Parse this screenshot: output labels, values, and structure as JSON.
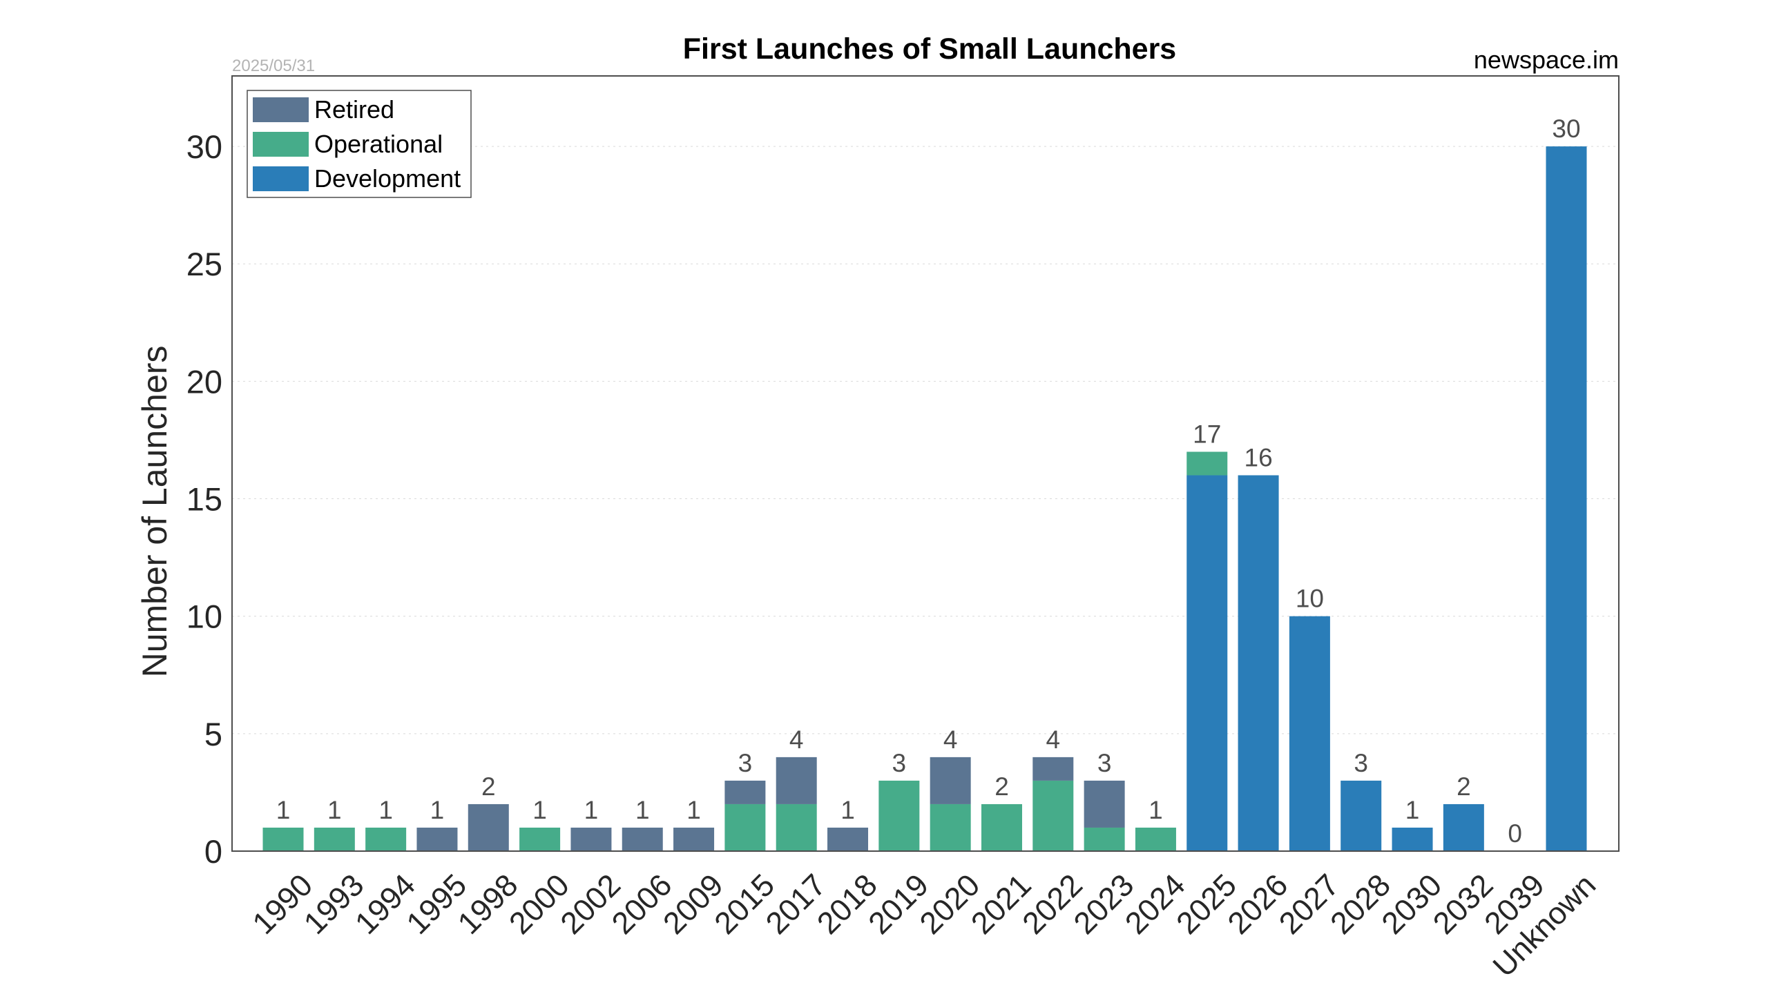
{
  "chart_data": {
    "type": "bar",
    "stacked": true,
    "title": "First Launches of Small Launchers",
    "date_label": "2025/05/31",
    "source_label": "newspace.im",
    "ylabel": "Number of Launchers",
    "xlabel": "",
    "ylim": [
      0,
      33
    ],
    "yticks": [
      0,
      5,
      10,
      15,
      20,
      25,
      30
    ],
    "grid": "horizontal dashed",
    "legend_position": "top-left",
    "categories": [
      "1990",
      "1993",
      "1994",
      "1995",
      "1998",
      "2000",
      "2002",
      "2006",
      "2009",
      "2015",
      "2017",
      "2018",
      "2019",
      "2020",
      "2021",
      "2022",
      "2023",
      "2024",
      "2025",
      "2026",
      "2027",
      "2028",
      "2030",
      "2032",
      "2039",
      "Unknown"
    ],
    "series": [
      {
        "name": "Development",
        "color": "#2a7db8",
        "values": [
          0,
          0,
          0,
          0,
          0,
          0,
          0,
          0,
          0,
          0,
          0,
          0,
          0,
          0,
          0,
          0,
          0,
          0,
          16,
          16,
          10,
          3,
          1,
          2,
          0,
          30
        ]
      },
      {
        "name": "Operational",
        "color": "#46ac8a",
        "values": [
          1,
          1,
          1,
          0,
          0,
          1,
          0,
          0,
          0,
          2,
          2,
          0,
          3,
          2,
          2,
          3,
          1,
          1,
          1,
          0,
          0,
          0,
          0,
          0,
          0,
          0
        ]
      },
      {
        "name": "Retired",
        "color": "#5b7592",
        "values": [
          0,
          0,
          0,
          1,
          2,
          0,
          1,
          1,
          1,
          1,
          2,
          1,
          0,
          2,
          0,
          1,
          2,
          0,
          0,
          0,
          0,
          0,
          0,
          0,
          0,
          0
        ]
      }
    ],
    "totals": [
      1,
      1,
      1,
      1,
      2,
      1,
      1,
      1,
      1,
      3,
      4,
      1,
      3,
      4,
      2,
      4,
      3,
      1,
      17,
      16,
      10,
      3,
      1,
      2,
      0,
      30
    ],
    "legend": [
      "Retired",
      "Operational",
      "Development"
    ]
  }
}
